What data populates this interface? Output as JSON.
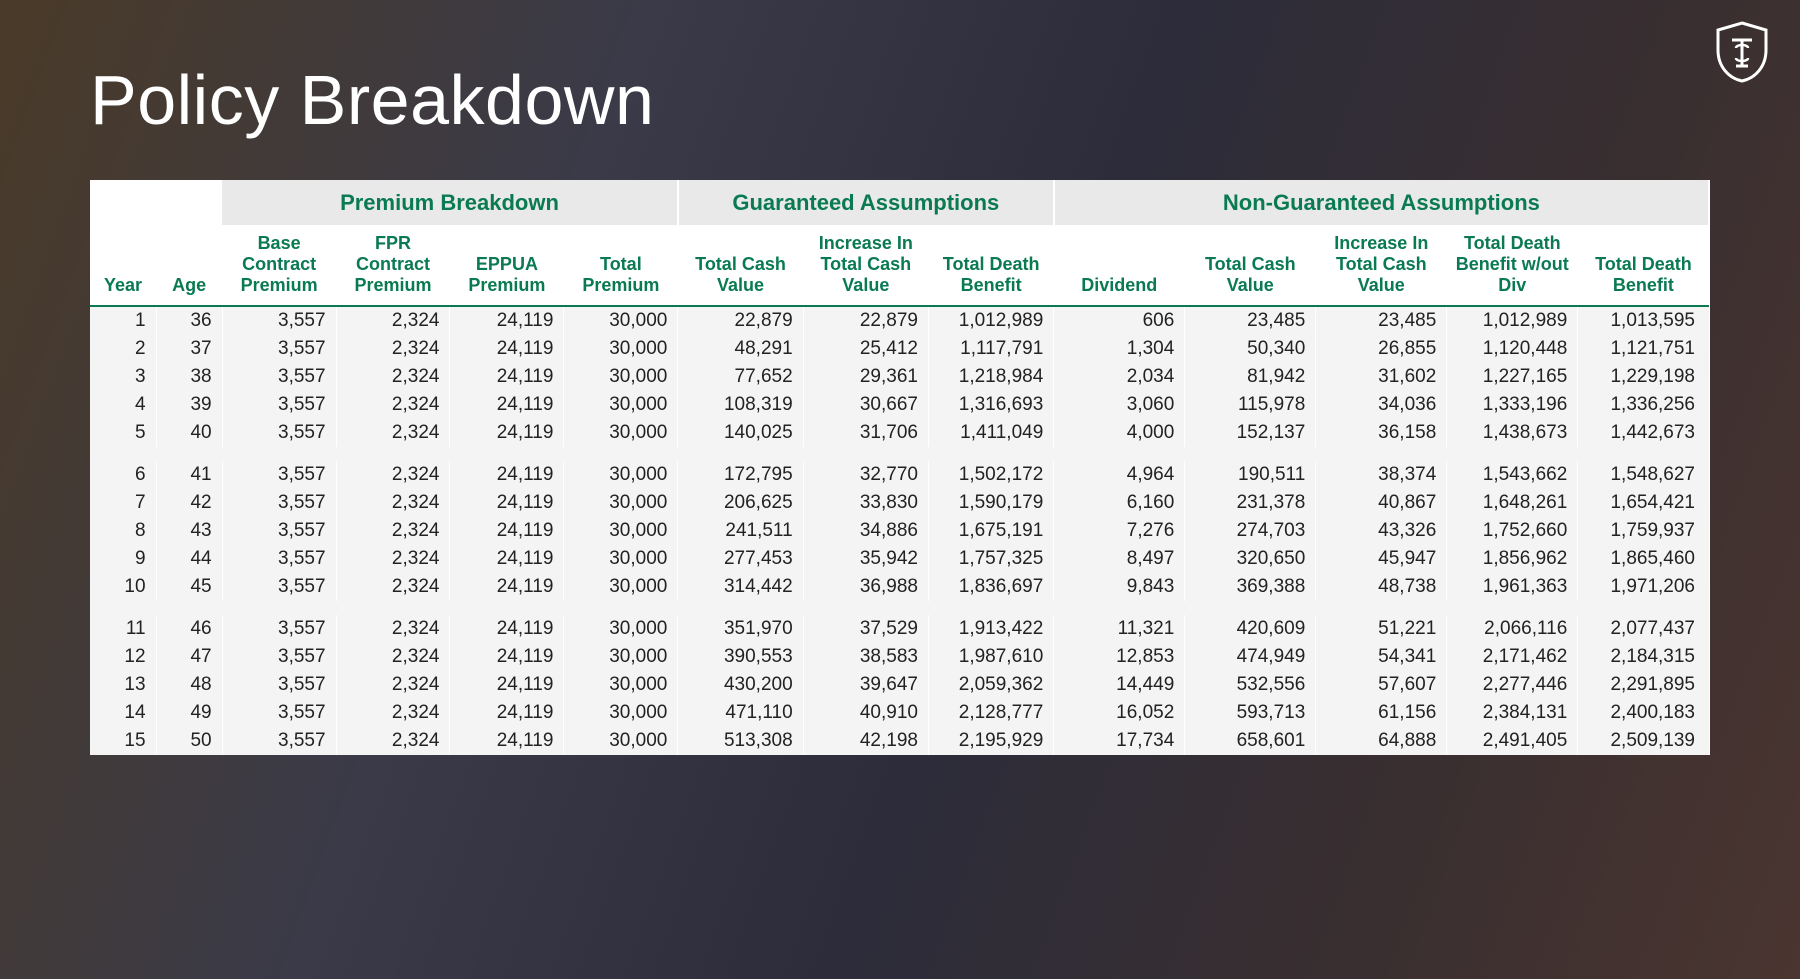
{
  "title": "Policy Breakdown",
  "logo_stroke": "#ffffff",
  "table": {
    "header_color": "#0a7a52",
    "group_bg": "#e9e9e9",
    "row_bg": "#f4f4f4",
    "groups": [
      {
        "label": "",
        "span": 2
      },
      {
        "label": "Premium Breakdown",
        "span": 4
      },
      {
        "label": "Guaranteed Assumptions",
        "span": 3
      },
      {
        "label": "Non-Guaranteed Assumptions",
        "span": 5
      }
    ],
    "columns": [
      "Year",
      "Age",
      "Base Contract Premium",
      "FPR Contract Premium",
      "EPPUA Premium",
      "Total Premium",
      "Total Cash Value",
      "Increase In Total Cash Value",
      "Total Death Benefit",
      "Dividend",
      "Total Cash Value",
      "Increase In Total Cash Value",
      "Total Death Benefit w/out Div",
      "Total Death Benefit"
    ],
    "blocks": [
      [
        [
          "1",
          "36",
          "3,557",
          "2,324",
          "24,119",
          "30,000",
          "22,879",
          "22,879",
          "1,012,989",
          "606",
          "23,485",
          "23,485",
          "1,012,989",
          "1,013,595"
        ],
        [
          "2",
          "37",
          "3,557",
          "2,324",
          "24,119",
          "30,000",
          "48,291",
          "25,412",
          "1,117,791",
          "1,304",
          "50,340",
          "26,855",
          "1,120,448",
          "1,121,751"
        ],
        [
          "3",
          "38",
          "3,557",
          "2,324",
          "24,119",
          "30,000",
          "77,652",
          "29,361",
          "1,218,984",
          "2,034",
          "81,942",
          "31,602",
          "1,227,165",
          "1,229,198"
        ],
        [
          "4",
          "39",
          "3,557",
          "2,324",
          "24,119",
          "30,000",
          "108,319",
          "30,667",
          "1,316,693",
          "3,060",
          "115,978",
          "34,036",
          "1,333,196",
          "1,336,256"
        ],
        [
          "5",
          "40",
          "3,557",
          "2,324",
          "24,119",
          "30,000",
          "140,025",
          "31,706",
          "1,411,049",
          "4,000",
          "152,137",
          "36,158",
          "1,438,673",
          "1,442,673"
        ]
      ],
      [
        [
          "6",
          "41",
          "3,557",
          "2,324",
          "24,119",
          "30,000",
          "172,795",
          "32,770",
          "1,502,172",
          "4,964",
          "190,511",
          "38,374",
          "1,543,662",
          "1,548,627"
        ],
        [
          "7",
          "42",
          "3,557",
          "2,324",
          "24,119",
          "30,000",
          "206,625",
          "33,830",
          "1,590,179",
          "6,160",
          "231,378",
          "40,867",
          "1,648,261",
          "1,654,421"
        ],
        [
          "8",
          "43",
          "3,557",
          "2,324",
          "24,119",
          "30,000",
          "241,511",
          "34,886",
          "1,675,191",
          "7,276",
          "274,703",
          "43,326",
          "1,752,660",
          "1,759,937"
        ],
        [
          "9",
          "44",
          "3,557",
          "2,324",
          "24,119",
          "30,000",
          "277,453",
          "35,942",
          "1,757,325",
          "8,497",
          "320,650",
          "45,947",
          "1,856,962",
          "1,865,460"
        ],
        [
          "10",
          "45",
          "3,557",
          "2,324",
          "24,119",
          "30,000",
          "314,442",
          "36,988",
          "1,836,697",
          "9,843",
          "369,388",
          "48,738",
          "1,961,363",
          "1,971,206"
        ]
      ],
      [
        [
          "11",
          "46",
          "3,557",
          "2,324",
          "24,119",
          "30,000",
          "351,970",
          "37,529",
          "1,913,422",
          "11,321",
          "420,609",
          "51,221",
          "2,066,116",
          "2,077,437"
        ],
        [
          "12",
          "47",
          "3,557",
          "2,324",
          "24,119",
          "30,000",
          "390,553",
          "38,583",
          "1,987,610",
          "12,853",
          "474,949",
          "54,341",
          "2,171,462",
          "2,184,315"
        ],
        [
          "13",
          "48",
          "3,557",
          "2,324",
          "24,119",
          "30,000",
          "430,200",
          "39,647",
          "2,059,362",
          "14,449",
          "532,556",
          "57,607",
          "2,277,446",
          "2,291,895"
        ],
        [
          "14",
          "49",
          "3,557",
          "2,324",
          "24,119",
          "30,000",
          "471,110",
          "40,910",
          "2,128,777",
          "16,052",
          "593,713",
          "61,156",
          "2,384,131",
          "2,400,183"
        ],
        [
          "15",
          "50",
          "3,557",
          "2,324",
          "24,119",
          "30,000",
          "513,308",
          "42,198",
          "2,195,929",
          "17,734",
          "658,601",
          "64,888",
          "2,491,405",
          "2,509,139"
        ]
      ]
    ]
  }
}
